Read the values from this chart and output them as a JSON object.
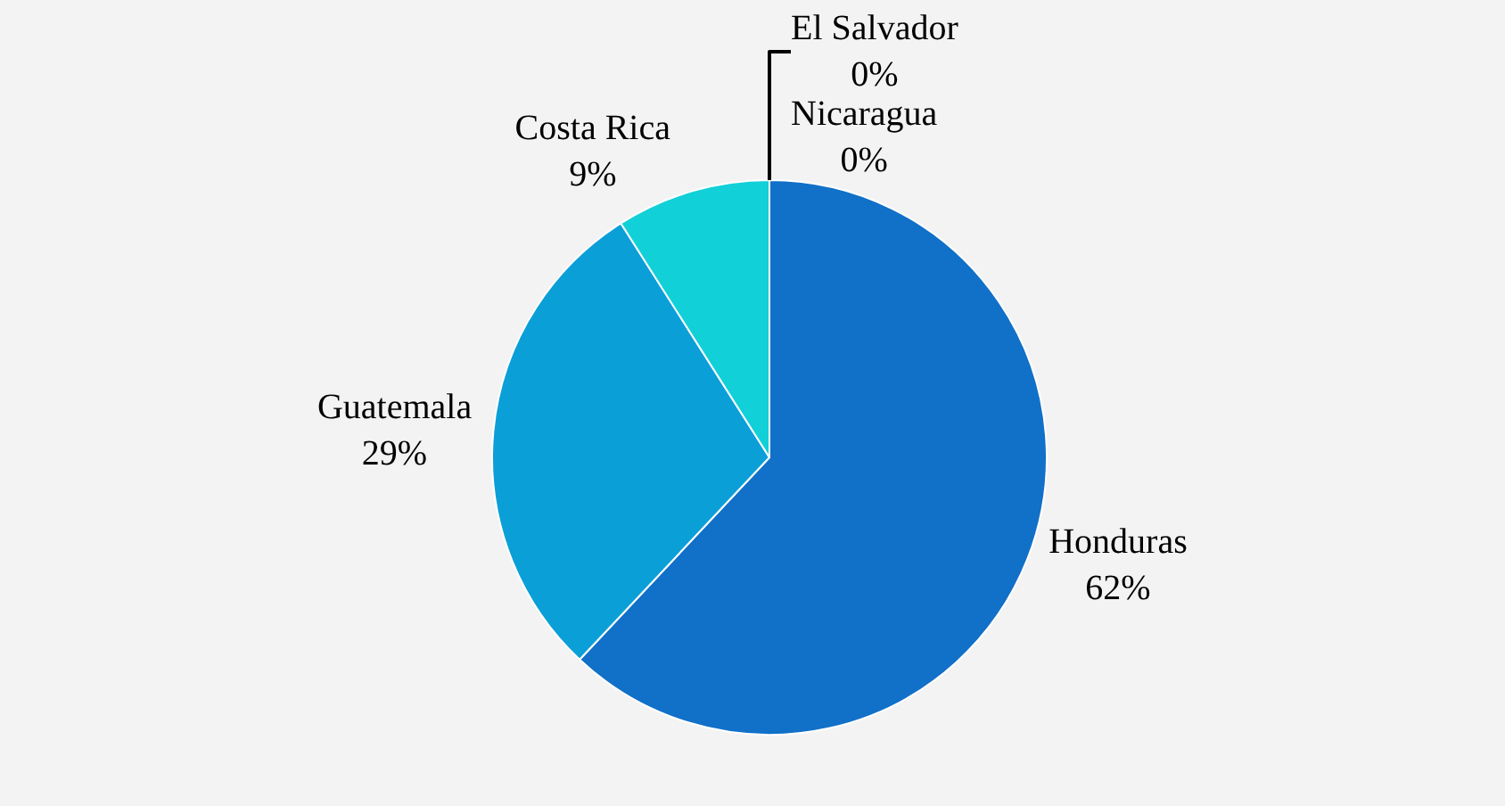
{
  "chart_data": {
    "type": "pie",
    "categories": [
      "Honduras",
      "Guatemala",
      "Costa Rica",
      "Nicaragua",
      "El Salvador"
    ],
    "values": [
      62,
      29,
      9,
      0,
      0
    ],
    "colors": [
      "#1170c8",
      "#0b9fd8",
      "#12d0d8",
      "#2a8ad0",
      "#3fb0e0"
    ],
    "value_labels": [
      "62%",
      "29%",
      "9%",
      "0%",
      "0%"
    ],
    "legend": false
  }
}
